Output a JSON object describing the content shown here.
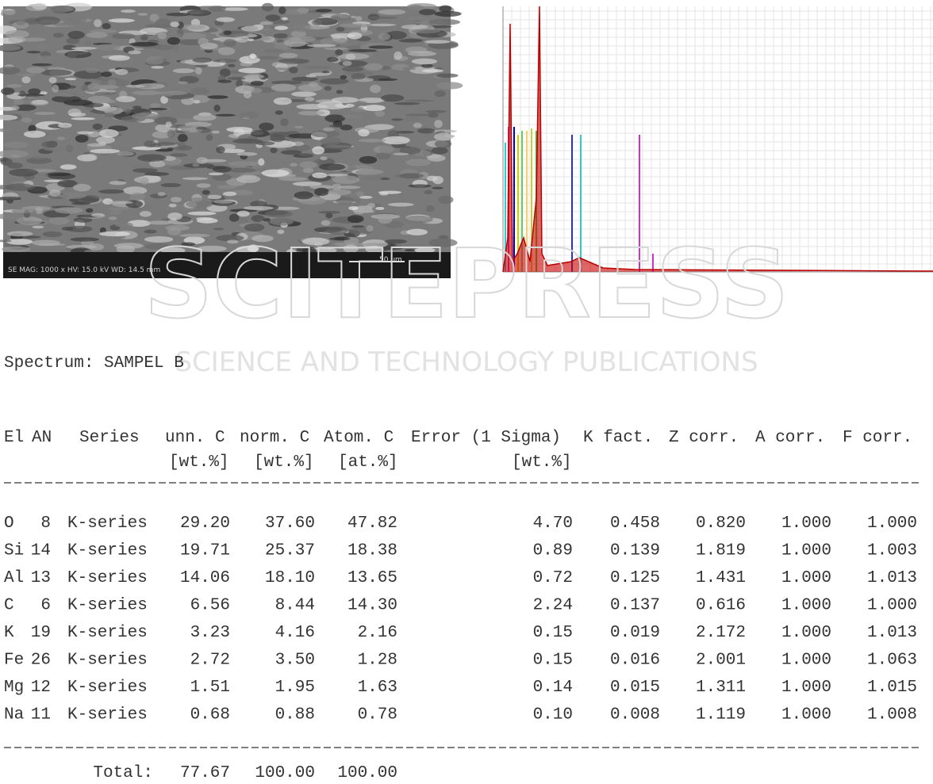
{
  "watermark": {
    "brand": "SCITEPRESS",
    "tagline": "SCIENCE AND TECHNOLOGY PUBLICATIONS"
  },
  "sem_image": {
    "caption": "SE MAG: 1000 x HV: 15.0 kV WD: 14.5 mm",
    "scale": "50 µm"
  },
  "table": {
    "title": "Spectrum: SAMPEL B",
    "header": [
      "El",
      "AN",
      "Series",
      "unn. C",
      "norm. C",
      "Atom. C",
      "Error (1 Sigma)",
      "K fact.",
      "Z corr.",
      "A corr.",
      "F corr."
    ],
    "units": [
      "[wt.%]",
      "[wt.%]",
      "[at.%]",
      "[wt.%]"
    ],
    "rows": [
      [
        "O",
        "8",
        "K-series",
        "29.20",
        "37.60",
        "47.82",
        "4.70",
        "0.458",
        "0.820",
        "1.000",
        "1.000"
      ],
      [
        "Si",
        "14",
        "K-series",
        "19.71",
        "25.37",
        "18.38",
        "0.89",
        "0.139",
        "1.819",
        "1.000",
        "1.003"
      ],
      [
        "Al",
        "13",
        "K-series",
        "14.06",
        "18.10",
        "13.65",
        "0.72",
        "0.125",
        "1.431",
        "1.000",
        "1.013"
      ],
      [
        "C",
        "6",
        "K-series",
        "6.56",
        "8.44",
        "14.30",
        "2.24",
        "0.137",
        "0.616",
        "1.000",
        "1.000"
      ],
      [
        "K",
        "19",
        "K-series",
        "3.23",
        "4.16",
        "2.16",
        "0.15",
        "0.019",
        "2.172",
        "1.000",
        "1.013"
      ],
      [
        "Fe",
        "26",
        "K-series",
        "2.72",
        "3.50",
        "1.28",
        "0.15",
        "0.016",
        "2.001",
        "1.000",
        "1.063"
      ],
      [
        "Mg",
        "12",
        "K-series",
        "1.51",
        "1.95",
        "1.63",
        "0.14",
        "0.015",
        "1.311",
        "1.000",
        "1.015"
      ],
      [
        "Na",
        "11",
        "K-series",
        "0.68",
        "0.88",
        "0.78",
        "0.10",
        "0.008",
        "1.119",
        "1.000",
        "1.008"
      ]
    ],
    "total": {
      "label": "Total:",
      "values": [
        "77.67",
        "100.00",
        "100.00"
      ]
    }
  }
}
